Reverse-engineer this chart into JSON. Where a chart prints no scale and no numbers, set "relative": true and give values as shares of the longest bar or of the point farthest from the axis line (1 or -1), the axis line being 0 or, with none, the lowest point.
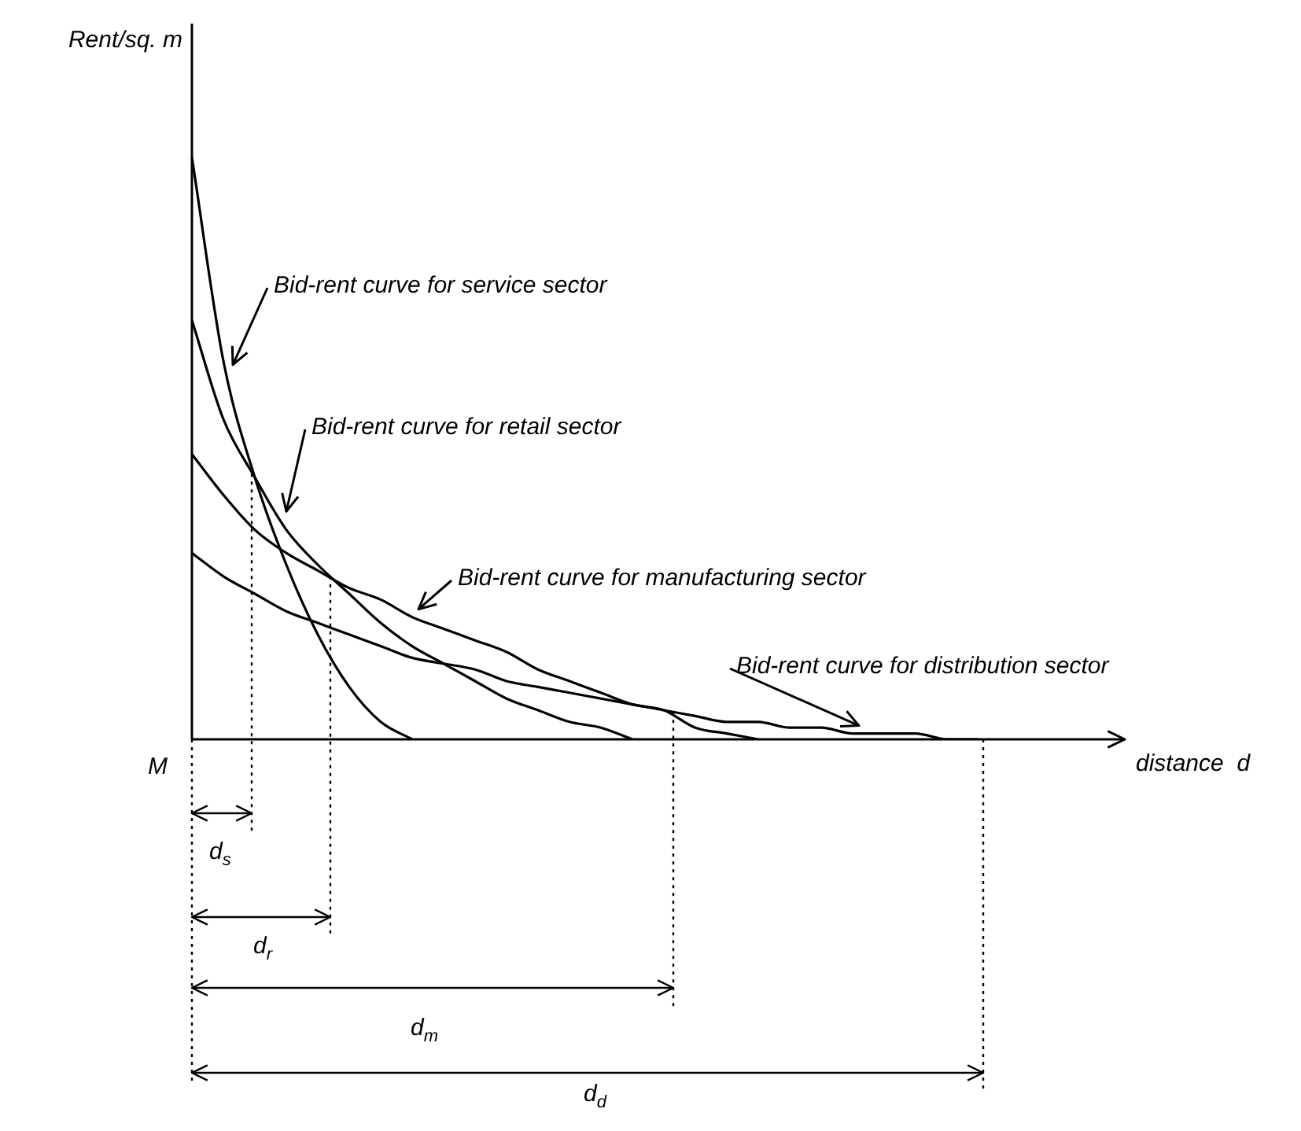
{
  "chart_data": {
    "type": "line",
    "relative": true,
    "xlabel": "distance  d",
    "ylabel": "Rent/sq. m",
    "legend": false,
    "grid": false,
    "categories": [
      null,
      null,
      null,
      null,
      null,
      null,
      null,
      null,
      null,
      null,
      null,
      null,
      null,
      null,
      null,
      null,
      null,
      null,
      null,
      null,
      null,
      null,
      null,
      null,
      null,
      null,
      null,
      null,
      null,
      null
    ],
    "series": [
      {
        "name": "Bid-rent curve for service sector",
        "color": "#000000",
        "values": [
          1,
          0.65,
          0.45,
          0.3,
          0.18,
          0.09,
          0.03,
          0,
          null,
          null,
          null,
          null,
          null,
          null,
          null,
          null,
          null,
          null,
          null,
          null,
          null,
          null,
          null,
          null,
          null,
          null,
          null,
          null,
          null,
          null
        ]
      },
      {
        "name": "Bid-rent curve for retail sector",
        "color": "#000000",
        "values": [
          0.72,
          0.55,
          0.45,
          0.36,
          0.3,
          0.25,
          0.2,
          0.16,
          0.13,
          0.1,
          0.07,
          0.05,
          0.03,
          0.02,
          0,
          null,
          null,
          null,
          null,
          null,
          null,
          null,
          null,
          null,
          null,
          null,
          null,
          null,
          null,
          null
        ]
      },
      {
        "name": "Bid-rent curve for manufacturing sector",
        "color": "#000000",
        "values": [
          0.49,
          0.42,
          0.36,
          0.32,
          0.29,
          0.26,
          0.24,
          0.21,
          0.19,
          0.17,
          0.15,
          0.12,
          0.1,
          0.08,
          0.06,
          0.05,
          0.02,
          0.01,
          0,
          null,
          null,
          null,
          null,
          null,
          null,
          null,
          null,
          null,
          null,
          null
        ]
      },
      {
        "name": "Bid-rent curve for distribution sector",
        "color": "#000000",
        "values": [
          0.32,
          0.28,
          0.25,
          0.22,
          0.2,
          0.18,
          0.16,
          0.14,
          0.13,
          0.12,
          0.1,
          0.09,
          0.08,
          0.07,
          0.06,
          0.05,
          0.04,
          0.03,
          0.03,
          0.02,
          0.02,
          0.01,
          0.01,
          0.01,
          0,
          0,
          null,
          null,
          null,
          null
        ]
      }
    ],
    "annotations": [
      "M",
      "d$_{s}$",
      "d$_{r}$",
      "d$_{m}$",
      "d$_{d}$"
    ]
  }
}
